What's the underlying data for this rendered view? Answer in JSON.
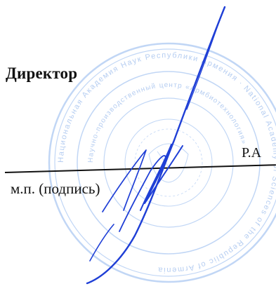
{
  "signature_block": {
    "title": "Директор",
    "name_fragment": "Р.А",
    "caption": "м.п. (подпись)"
  },
  "stamp": {
    "outer_ring_text": "Национальная Академия Наук Республики Армения · National Academy of Sciences of the Republic of Armenia",
    "inner_ring_text": "Научно-производственный центр «Армбиотехнология»",
    "color": "#6f9fe0"
  },
  "colors": {
    "ink": "#1f3fd6",
    "text": "#111111",
    "background": "#ffffff"
  }
}
